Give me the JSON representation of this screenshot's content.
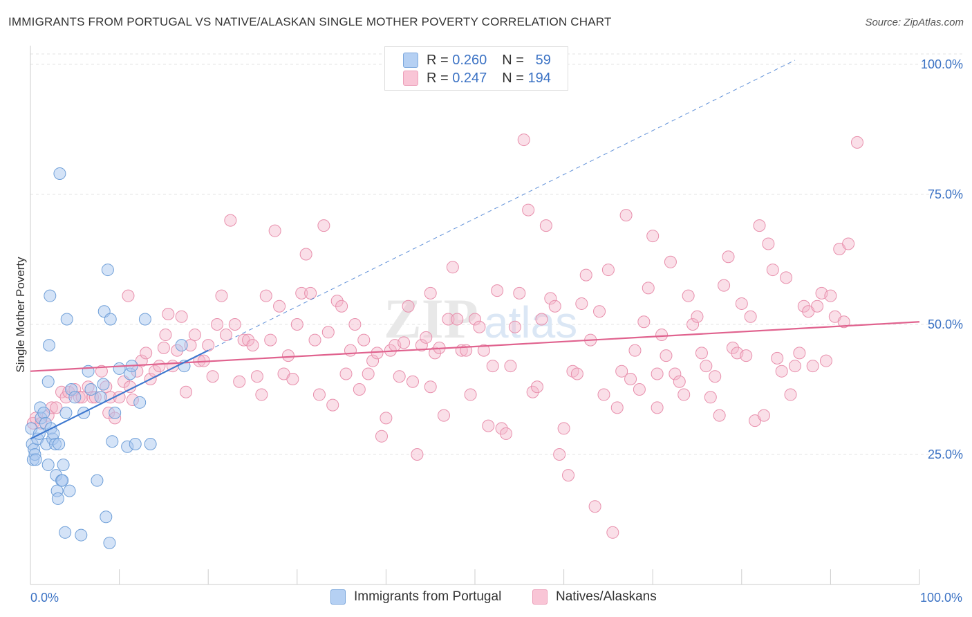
{
  "title": "IMMIGRANTS FROM PORTUGAL VS NATIVE/ALASKAN SINGLE MOTHER POVERTY CORRELATION CHART",
  "source": "Source: ZipAtlas.com",
  "watermark": {
    "zip": "ZIP",
    "atlas": "atlas"
  },
  "legend": {
    "r_label": "R =",
    "n_label": "N =",
    "rows": [
      {
        "r": "0.260",
        "n": "59"
      },
      {
        "r": "0.247",
        "n": "194"
      }
    ]
  },
  "colors": {
    "blue_fill": "#a9c8f0",
    "blue_stroke": "#6f9fd8",
    "blue_line": "#3d78cf",
    "pink_fill": "#f5b8cc",
    "pink_stroke": "#e88fac",
    "pink_line": "#e0628e",
    "tick_label": "#3b72c4",
    "grid": "#e3e3e3"
  },
  "chart_data": {
    "type": "scatter",
    "title": "IMMIGRANTS FROM PORTUGAL VS NATIVE/ALASKAN SINGLE MOTHER POVERTY CORRELATION CHART",
    "xlabel": "",
    "ylabel": "Single Mother Poverty",
    "xlim": [
      0,
      100
    ],
    "ylim": [
      0,
      102
    ],
    "x_tick_labels": [
      "0.0%",
      "100.0%"
    ],
    "y_ticks": [
      25,
      50,
      75,
      100
    ],
    "y_tick_labels": [
      "25.0%",
      "50.0%",
      "75.0%",
      "100.0%"
    ],
    "grid": true,
    "legend_position": "top-center",
    "series": [
      {
        "name": "Immigrants from Portugal",
        "color": "#a9c8f0",
        "r": 0.26,
        "n": 59,
        "trend": {
          "x": [
            0,
            20
          ],
          "y": [
            28.0,
            45.0
          ]
        },
        "trend_extension": {
          "x": [
            20,
            86
          ],
          "y": [
            45.0,
            100.8
          ]
        },
        "points": [
          [
            0.1,
            30
          ],
          [
            0.2,
            27
          ],
          [
            0.3,
            24
          ],
          [
            0.4,
            26
          ],
          [
            0.5,
            25
          ],
          [
            0.6,
            24
          ],
          [
            0.8,
            28
          ],
          [
            1,
            29
          ],
          [
            1.1,
            34
          ],
          [
            1.2,
            32
          ],
          [
            1.5,
            33
          ],
          [
            1.7,
            31
          ],
          [
            1.8,
            27
          ],
          [
            2,
            23
          ],
          [
            2,
            39
          ],
          [
            2.1,
            46
          ],
          [
            2.2,
            55.5
          ],
          [
            2.3,
            30
          ],
          [
            2.5,
            28
          ],
          [
            2.6,
            29
          ],
          [
            2.8,
            27
          ],
          [
            2.9,
            21
          ],
          [
            3,
            18
          ],
          [
            3.1,
            16.5
          ],
          [
            3.2,
            27
          ],
          [
            3.3,
            79
          ],
          [
            3.5,
            20
          ],
          [
            3.6,
            20
          ],
          [
            3.7,
            23
          ],
          [
            3.9,
            10
          ],
          [
            4,
            33
          ],
          [
            4.1,
            51
          ],
          [
            4.4,
            18
          ],
          [
            4.6,
            37.5
          ],
          [
            5,
            36
          ],
          [
            5.7,
            9.5
          ],
          [
            6,
            33
          ],
          [
            6.5,
            41
          ],
          [
            6.8,
            37.5
          ],
          [
            7.5,
            20
          ],
          [
            7.9,
            36
          ],
          [
            8.2,
            38.5
          ],
          [
            8.3,
            52.5
          ],
          [
            8.5,
            13
          ],
          [
            8.7,
            60.5
          ],
          [
            8.9,
            8
          ],
          [
            9,
            51
          ],
          [
            9.2,
            27.5
          ],
          [
            9.5,
            33
          ],
          [
            10,
            41.5
          ],
          [
            10.9,
            26.5
          ],
          [
            11.2,
            40.5
          ],
          [
            11.4,
            42
          ],
          [
            11.8,
            27
          ],
          [
            12.3,
            35
          ],
          [
            12.9,
            51
          ],
          [
            13.5,
            27
          ],
          [
            17,
            46
          ],
          [
            17.3,
            42
          ]
        ]
      },
      {
        "name": "Natives/Alaskans",
        "color": "#f5b8cc",
        "r": 0.247,
        "n": 194,
        "trend": {
          "x": [
            0,
            100
          ],
          "y": [
            41.0,
            50.5
          ]
        },
        "points": [
          [
            0.3,
            31
          ],
          [
            0.6,
            32
          ],
          [
            1.2,
            31
          ],
          [
            2,
            32.5
          ],
          [
            2.4,
            34
          ],
          [
            2.9,
            34
          ],
          [
            3.5,
            37
          ],
          [
            4,
            36
          ],
          [
            4.3,
            37
          ],
          [
            5,
            37.5
          ],
          [
            5.5,
            36
          ],
          [
            5.8,
            36
          ],
          [
            6.5,
            38
          ],
          [
            7,
            36
          ],
          [
            7.3,
            36
          ],
          [
            8,
            41
          ],
          [
            8.5,
            38
          ],
          [
            8.8,
            33
          ],
          [
            9,
            36
          ],
          [
            9.5,
            32
          ],
          [
            10,
            36
          ],
          [
            10.5,
            39
          ],
          [
            11,
            55.5
          ],
          [
            11.2,
            38
          ],
          [
            11.5,
            35.5
          ],
          [
            12,
            41
          ],
          [
            12.5,
            43
          ],
          [
            13,
            44.5
          ],
          [
            13.5,
            39.5
          ],
          [
            14,
            41
          ],
          [
            14.5,
            42
          ],
          [
            15,
            45.5
          ],
          [
            15.2,
            48
          ],
          [
            15.5,
            52
          ],
          [
            16,
            42
          ],
          [
            16.5,
            45
          ],
          [
            17,
            51.5
          ],
          [
            17.5,
            37
          ],
          [
            18,
            46
          ],
          [
            18.5,
            48
          ],
          [
            19,
            43
          ],
          [
            19.5,
            43
          ],
          [
            20,
            46
          ],
          [
            20.5,
            40
          ],
          [
            21,
            50
          ],
          [
            21.5,
            55.5
          ],
          [
            22,
            48
          ],
          [
            22.5,
            70
          ],
          [
            23,
            50
          ],
          [
            23.5,
            39
          ],
          [
            24,
            47
          ],
          [
            24.5,
            47
          ],
          [
            25,
            46
          ],
          [
            25.5,
            40
          ],
          [
            26,
            36.5
          ],
          [
            26.5,
            55.5
          ],
          [
            27,
            47
          ],
          [
            27.5,
            68
          ],
          [
            28,
            53.5
          ],
          [
            28.5,
            40.5
          ],
          [
            29,
            44
          ],
          [
            29.5,
            39.5
          ],
          [
            30,
            50
          ],
          [
            30.5,
            56
          ],
          [
            31,
            63.5
          ],
          [
            31.5,
            56
          ],
          [
            32,
            47
          ],
          [
            32.5,
            36.5
          ],
          [
            33,
            69
          ],
          [
            33.5,
            48.5
          ],
          [
            34,
            34.5
          ],
          [
            34.5,
            54.5
          ],
          [
            35,
            53.5
          ],
          [
            35.5,
            40.5
          ],
          [
            36,
            45
          ],
          [
            36.5,
            50
          ],
          [
            37,
            37.5
          ],
          [
            37.5,
            47
          ],
          [
            38,
            40.5
          ],
          [
            38.5,
            43
          ],
          [
            39,
            44.5
          ],
          [
            39.5,
            28.5
          ],
          [
            40,
            32
          ],
          [
            40.5,
            45
          ],
          [
            41,
            46
          ],
          [
            41.5,
            40
          ],
          [
            42,
            46.5
          ],
          [
            42.5,
            53.5
          ],
          [
            43,
            39
          ],
          [
            43.5,
            25
          ],
          [
            44,
            46
          ],
          [
            44.5,
            47.5
          ],
          [
            45,
            56
          ],
          [
            45.5,
            44.5
          ],
          [
            46,
            45.5
          ],
          [
            46.5,
            32.5
          ],
          [
            47,
            51
          ],
          [
            47.5,
            61
          ],
          [
            48,
            51
          ],
          [
            48.5,
            45
          ],
          [
            49,
            45
          ],
          [
            49.5,
            36.5
          ],
          [
            50,
            51
          ],
          [
            50.5,
            49.5
          ],
          [
            51,
            45
          ],
          [
            51.5,
            30.5
          ],
          [
            52,
            42
          ],
          [
            52.5,
            56.5
          ],
          [
            53,
            30
          ],
          [
            53.5,
            29
          ],
          [
            54,
            42
          ],
          [
            54.5,
            49.5
          ],
          [
            55,
            56
          ],
          [
            55.5,
            85.5
          ],
          [
            56,
            72
          ],
          [
            56.5,
            37
          ],
          [
            57,
            38
          ],
          [
            57.5,
            51
          ],
          [
            58,
            69
          ],
          [
            58.5,
            55
          ],
          [
            59,
            53.5
          ],
          [
            59.5,
            25
          ],
          [
            60,
            30
          ],
          [
            60.5,
            21
          ],
          [
            61,
            41
          ],
          [
            61.5,
            40.5
          ],
          [
            62,
            54
          ],
          [
            62.5,
            59.5
          ],
          [
            63,
            47
          ],
          [
            63.5,
            15
          ],
          [
            64,
            52.5
          ],
          [
            64.5,
            36.5
          ],
          [
            65,
            60.5
          ],
          [
            65.5,
            10
          ],
          [
            66,
            34
          ],
          [
            66.5,
            41
          ],
          [
            67,
            71
          ],
          [
            67.5,
            39.5
          ],
          [
            68,
            45
          ],
          [
            68.5,
            37.5
          ],
          [
            69,
            50.5
          ],
          [
            69.5,
            57
          ],
          [
            70,
            67
          ],
          [
            70.5,
            40.5
          ],
          [
            71,
            48
          ],
          [
            71.5,
            44
          ],
          [
            72,
            62
          ],
          [
            72.5,
            40.5
          ],
          [
            73,
            39
          ],
          [
            73.5,
            36.5
          ],
          [
            74,
            55.5
          ],
          [
            74.5,
            50
          ],
          [
            75,
            51.5
          ],
          [
            75.5,
            44.5
          ],
          [
            76,
            42
          ],
          [
            76.5,
            36
          ],
          [
            77,
            40
          ],
          [
            77.5,
            32.5
          ],
          [
            78,
            57.5
          ],
          [
            78.5,
            63
          ],
          [
            79,
            45.5
          ],
          [
            79.5,
            44.5
          ],
          [
            80,
            54
          ],
          [
            80.5,
            44
          ],
          [
            81,
            51.5
          ],
          [
            81.5,
            31.5
          ],
          [
            82,
            69
          ],
          [
            82.5,
            32.5
          ],
          [
            83,
            65.5
          ],
          [
            83.5,
            60.5
          ],
          [
            84,
            43.5
          ],
          [
            84.5,
            41
          ],
          [
            85,
            59
          ],
          [
            85.5,
            36.5
          ],
          [
            86,
            42
          ],
          [
            86.5,
            44.5
          ],
          [
            87,
            53.5
          ],
          [
            87.5,
            52.5
          ],
          [
            88,
            42
          ],
          [
            88.5,
            53.5
          ],
          [
            89,
            56
          ],
          [
            89.5,
            43
          ],
          [
            90,
            55.5
          ],
          [
            90.5,
            51.5
          ],
          [
            91,
            64.5
          ],
          [
            91.5,
            50.5
          ],
          [
            92,
            65.5
          ],
          [
            93,
            85
          ],
          [
            70.5,
            34
          ],
          [
            45,
            38
          ]
        ]
      }
    ]
  },
  "bottom_legend": [
    {
      "label": "Immigrants from Portugal"
    },
    {
      "label": "Natives/Alaskans"
    }
  ]
}
